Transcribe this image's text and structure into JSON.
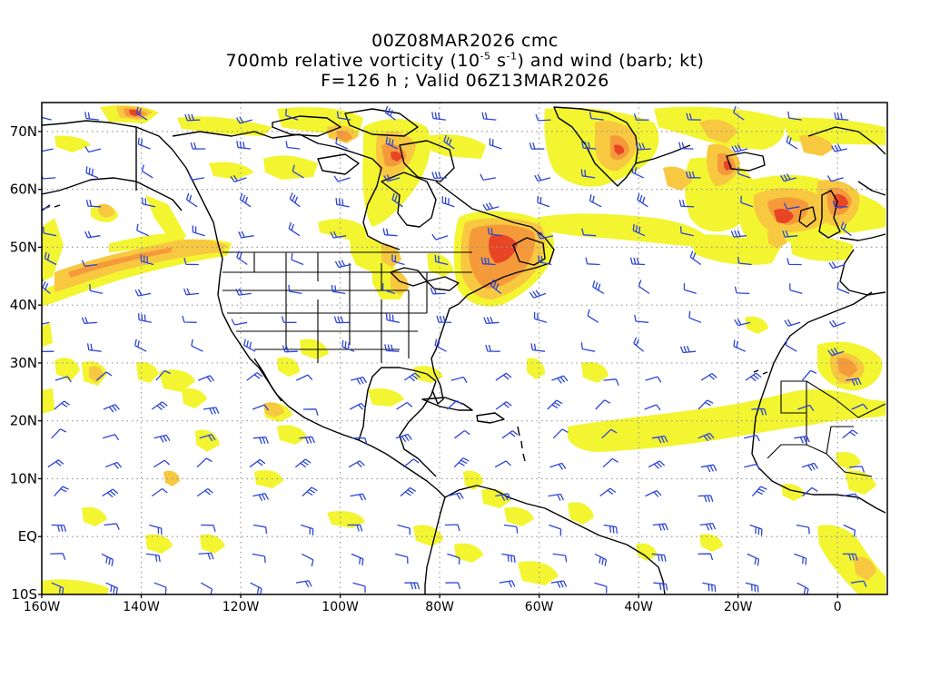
{
  "header": {
    "line1": "00Z08MAR2026 cmc",
    "line2_pre": "700mb relative vorticity (10",
    "line2_exp1": "-5",
    "line2_mid": " s",
    "line2_exp2": "-1",
    "line2_post": ") and wind (barb; kt)",
    "line3": "F=126 h ; Valid 06Z13MAR2026"
  },
  "map": {
    "lon_range": [
      -160,
      10
    ],
    "lat_range": [
      -10,
      75
    ],
    "lat_labels": [
      {
        "lat": 70,
        "text": "70N"
      },
      {
        "lat": 60,
        "text": "60N"
      },
      {
        "lat": 50,
        "text": "50N"
      },
      {
        "lat": 40,
        "text": "40N"
      },
      {
        "lat": 30,
        "text": "30N"
      },
      {
        "lat": 20,
        "text": "20N"
      },
      {
        "lat": 10,
        "text": "10N"
      },
      {
        "lat": 0,
        "text": "EQ"
      },
      {
        "lat": -10,
        "text": "10S"
      }
    ],
    "lon_labels": [
      {
        "lon": -160,
        "text": "160W"
      },
      {
        "lon": -140,
        "text": "140W"
      },
      {
        "lon": -120,
        "text": "120W"
      },
      {
        "lon": -100,
        "text": "100W"
      },
      {
        "lon": -80,
        "text": "80W"
      },
      {
        "lon": -60,
        "text": "60W"
      },
      {
        "lon": -40,
        "text": "40W"
      },
      {
        "lon": -20,
        "text": "20W"
      },
      {
        "lon": 0,
        "text": "0"
      }
    ],
    "grid_lats": [
      70,
      60,
      50,
      40,
      30,
      20,
      10,
      0
    ],
    "grid_lons": [
      -140,
      -120,
      -100,
      -80,
      -60,
      -40,
      -20,
      0
    ],
    "colors": {
      "frame": "#000000",
      "grid": "#9a9a9a",
      "coast": "#000000",
      "barb": "#2b45d8",
      "vort_weak": "#f2f530",
      "vort_mod": "#f8c840",
      "vort_strong": "#f59a3a",
      "vort_max": "#e84525"
    }
  }
}
